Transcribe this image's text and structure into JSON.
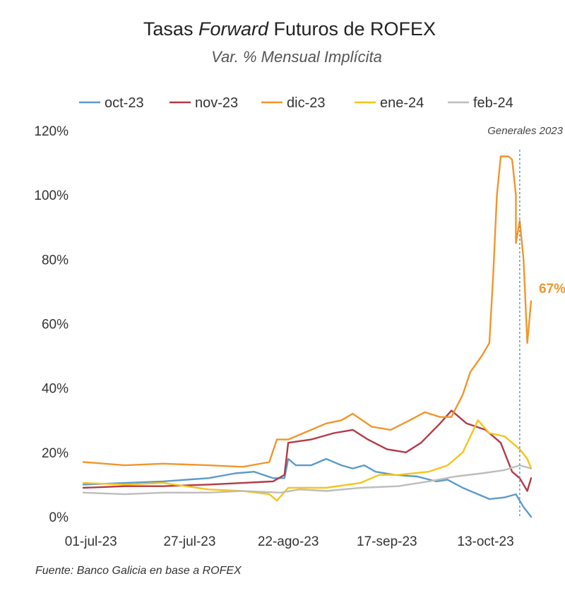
{
  "title_prefix": "Tasas ",
  "title_italic": "Forward",
  "title_suffix": " Futuros de ROFEX",
  "subtitle": "Var. % Mensual Implícita",
  "source": "Fuente: Banco Galicia en base a ROFEX",
  "chart_data": {
    "type": "line",
    "title": "Tasas Forward Futuros de ROFEX",
    "subtitle": "Var. % Mensual Implícita",
    "x_tick_labels": [
      "01-jul-23",
      "27-jul-23",
      "22-ago-23",
      "17-sep-23",
      "13-oct-23"
    ],
    "x_tick_dates": [
      "2023-07-01",
      "2023-07-27",
      "2023-08-22",
      "2023-09-17",
      "2023-10-13"
    ],
    "x_range": [
      "2023-06-29",
      "2023-10-25"
    ],
    "y_ticks": [
      0,
      20,
      40,
      60,
      80,
      100,
      120
    ],
    "y_tick_labels": [
      "0%",
      "20%",
      "40%",
      "60%",
      "80%",
      "100%",
      "120%"
    ],
    "ylim": [
      0,
      120
    ],
    "legend_position": "top",
    "grid": false,
    "annotations": {
      "vline_date": "2023-10-22",
      "vline_label": "Generales 2023",
      "end_label": "67%",
      "end_label_color": "#F0962C"
    },
    "series": [
      {
        "name": "oct-23",
        "color": "#5B9BC9",
        "points": [
          [
            "2023-06-29",
            10
          ],
          [
            "2023-07-10",
            10.5
          ],
          [
            "2023-07-20",
            11
          ],
          [
            "2023-08-01",
            12
          ],
          [
            "2023-08-08",
            13.5
          ],
          [
            "2023-08-13",
            14
          ],
          [
            "2023-08-18",
            12
          ],
          [
            "2023-08-21",
            12
          ],
          [
            "2023-08-22",
            18
          ],
          [
            "2023-08-24",
            16
          ],
          [
            "2023-08-28",
            16
          ],
          [
            "2023-09-01",
            18
          ],
          [
            "2023-09-05",
            16
          ],
          [
            "2023-09-08",
            15
          ],
          [
            "2023-09-11",
            16
          ],
          [
            "2023-09-14",
            14
          ],
          [
            "2023-09-19",
            13
          ],
          [
            "2023-09-25",
            12.5
          ],
          [
            "2023-09-30",
            11
          ],
          [
            "2023-10-03",
            11.5
          ],
          [
            "2023-10-07",
            9
          ],
          [
            "2023-10-11",
            7
          ],
          [
            "2023-10-14",
            5.5
          ],
          [
            "2023-10-18",
            6
          ],
          [
            "2023-10-21",
            7
          ],
          [
            "2023-10-23",
            3
          ],
          [
            "2023-10-25",
            0
          ]
        ]
      },
      {
        "name": "nov-23",
        "color": "#B23A48",
        "points": [
          [
            "2023-06-29",
            9
          ],
          [
            "2023-07-10",
            9.5
          ],
          [
            "2023-07-20",
            9.5
          ],
          [
            "2023-08-01",
            10
          ],
          [
            "2023-08-10",
            10.5
          ],
          [
            "2023-08-18",
            11
          ],
          [
            "2023-08-21",
            13
          ],
          [
            "2023-08-22",
            23
          ],
          [
            "2023-08-28",
            24
          ],
          [
            "2023-09-03",
            26
          ],
          [
            "2023-09-08",
            27
          ],
          [
            "2023-09-12",
            24
          ],
          [
            "2023-09-17",
            21
          ],
          [
            "2023-09-22",
            20
          ],
          [
            "2023-09-26",
            23
          ],
          [
            "2023-10-01",
            29
          ],
          [
            "2023-10-04",
            33
          ],
          [
            "2023-10-08",
            29
          ],
          [
            "2023-10-13",
            27
          ],
          [
            "2023-10-17",
            23
          ],
          [
            "2023-10-20",
            14
          ],
          [
            "2023-10-22",
            12
          ],
          [
            "2023-10-24",
            8
          ],
          [
            "2023-10-25",
            12
          ]
        ]
      },
      {
        "name": "dic-23",
        "color": "#F0962C",
        "points": [
          [
            "2023-06-29",
            17
          ],
          [
            "2023-07-10",
            16
          ],
          [
            "2023-07-20",
            16.5
          ],
          [
            "2023-08-01",
            16
          ],
          [
            "2023-08-10",
            15.5
          ],
          [
            "2023-08-17",
            17
          ],
          [
            "2023-08-19",
            24
          ],
          [
            "2023-08-22",
            24
          ],
          [
            "2023-08-26",
            26
          ],
          [
            "2023-09-01",
            29
          ],
          [
            "2023-09-05",
            30
          ],
          [
            "2023-09-08",
            32
          ],
          [
            "2023-09-13",
            28
          ],
          [
            "2023-09-18",
            27
          ],
          [
            "2023-09-23",
            30
          ],
          [
            "2023-09-27",
            32.5
          ],
          [
            "2023-10-01",
            31
          ],
          [
            "2023-10-04",
            31
          ],
          [
            "2023-10-07",
            38
          ],
          [
            "2023-10-09",
            45
          ],
          [
            "2023-10-12",
            50
          ],
          [
            "2023-10-14",
            54
          ],
          [
            "2023-10-15",
            75
          ],
          [
            "2023-10-16",
            100
          ],
          [
            "2023-10-17",
            112
          ],
          [
            "2023-10-19",
            112
          ],
          [
            "2023-10-20",
            111
          ],
          [
            "2023-10-21",
            100
          ],
          [
            "2023-10-21",
            85
          ],
          [
            "2023-10-22",
            92
          ],
          [
            "2023-10-23",
            80
          ],
          [
            "2023-10-24",
            54
          ],
          [
            "2023-10-25",
            67
          ]
        ]
      },
      {
        "name": "ene-24",
        "color": "#F5C518",
        "points": [
          [
            "2023-06-29",
            10.5
          ],
          [
            "2023-07-10",
            10
          ],
          [
            "2023-07-20",
            10.5
          ],
          [
            "2023-08-01",
            8.5
          ],
          [
            "2023-08-10",
            8
          ],
          [
            "2023-08-17",
            7
          ],
          [
            "2023-08-19",
            5
          ],
          [
            "2023-08-22",
            9
          ],
          [
            "2023-09-01",
            9
          ],
          [
            "2023-09-10",
            10.5
          ],
          [
            "2023-09-15",
            13
          ],
          [
            "2023-09-20",
            13
          ],
          [
            "2023-09-28",
            14
          ],
          [
            "2023-10-03",
            16
          ],
          [
            "2023-10-07",
            20
          ],
          [
            "2023-10-11",
            30
          ],
          [
            "2023-10-14",
            26
          ],
          [
            "2023-10-18",
            25
          ],
          [
            "2023-10-22",
            21
          ],
          [
            "2023-10-24",
            18
          ],
          [
            "2023-10-25",
            15
          ]
        ]
      },
      {
        "name": "feb-24",
        "color": "#BDBDBD",
        "points": [
          [
            "2023-06-29",
            7.5
          ],
          [
            "2023-07-10",
            7
          ],
          [
            "2023-07-20",
            7.5
          ],
          [
            "2023-08-01",
            7.5
          ],
          [
            "2023-08-10",
            8
          ],
          [
            "2023-08-20",
            7.5
          ],
          [
            "2023-08-25",
            8.5
          ],
          [
            "2023-09-01",
            8
          ],
          [
            "2023-09-10",
            9
          ],
          [
            "2023-09-20",
            9.5
          ],
          [
            "2023-09-28",
            11
          ],
          [
            "2023-10-05",
            12.5
          ],
          [
            "2023-10-12",
            13.5
          ],
          [
            "2023-10-18",
            14.5
          ],
          [
            "2023-10-22",
            16
          ],
          [
            "2023-10-25",
            15
          ]
        ]
      }
    ]
  }
}
